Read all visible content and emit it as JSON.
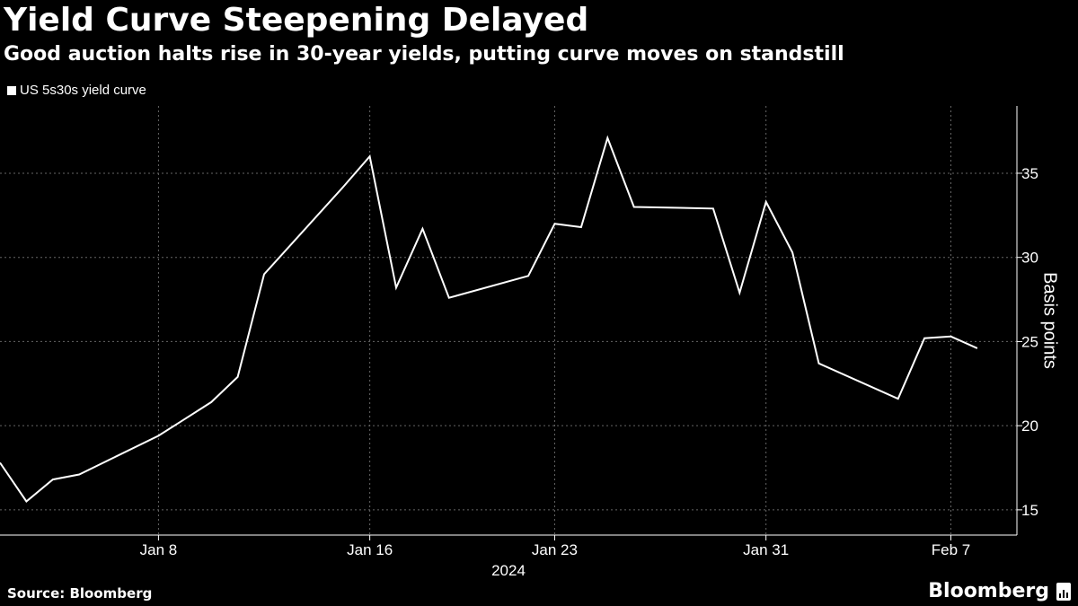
{
  "title": "Yield Curve Steepening Delayed",
  "subtitle": "Good auction halts rise in 30-year yields, putting curve moves on standstill",
  "source": "Source: Bloomberg",
  "brand": "Bloomberg",
  "colors": {
    "background": "#000000",
    "line": "#ffffff",
    "grid": "#666666"
  },
  "chart_data": {
    "type": "line",
    "ylabel": "Basis points",
    "xlabel_year": "2024",
    "ylim": [
      13.5,
      39
    ],
    "yticks": [
      15,
      20,
      25,
      30,
      35
    ],
    "xticks": [
      {
        "day": 8,
        "label": "Jan 8"
      },
      {
        "day": 16,
        "label": "Jan 16"
      },
      {
        "day": 23,
        "label": "Jan 23"
      },
      {
        "day": 31,
        "label": "Jan 31"
      },
      {
        "day": 38,
        "label": "Feb 7"
      }
    ],
    "grid": true,
    "y_axis_position": "right",
    "legend_position": "top-left",
    "series": [
      {
        "name": "US 5s30s yield curve",
        "points": [
          {
            "date": "2024-01-02",
            "day": 2,
            "value": 17.8
          },
          {
            "date": "2024-01-03",
            "day": 3,
            "value": 15.5
          },
          {
            "date": "2024-01-04",
            "day": 4,
            "value": 16.8
          },
          {
            "date": "2024-01-05",
            "day": 5,
            "value": 17.1
          },
          {
            "date": "2024-01-08",
            "day": 8,
            "value": 19.4
          },
          {
            "date": "2024-01-09",
            "day": 9,
            "value": 20.4
          },
          {
            "date": "2024-01-10",
            "day": 10,
            "value": 21.4
          },
          {
            "date": "2024-01-11",
            "day": 11,
            "value": 22.9
          },
          {
            "date": "2024-01-12",
            "day": 12,
            "value": 29.0
          },
          {
            "date": "2024-01-15",
            "day": 15,
            "value": 34.2
          },
          {
            "date": "2024-01-16",
            "day": 16,
            "value": 36.0
          },
          {
            "date": "2024-01-17",
            "day": 17,
            "value": 28.2
          },
          {
            "date": "2024-01-18",
            "day": 18,
            "value": 31.7
          },
          {
            "date": "2024-01-19",
            "day": 19,
            "value": 27.6
          },
          {
            "date": "2024-01-22",
            "day": 22,
            "value": 28.9
          },
          {
            "date": "2024-01-23",
            "day": 23,
            "value": 32.0
          },
          {
            "date": "2024-01-24",
            "day": 24,
            "value": 31.8
          },
          {
            "date": "2024-01-25",
            "day": 25,
            "value": 37.1
          },
          {
            "date": "2024-01-26",
            "day": 26,
            "value": 33.0
          },
          {
            "date": "2024-01-29",
            "day": 29,
            "value": 32.9
          },
          {
            "date": "2024-01-30",
            "day": 30,
            "value": 27.9
          },
          {
            "date": "2024-01-31",
            "day": 31,
            "value": 33.3
          },
          {
            "date": "2024-02-01",
            "day": 32,
            "value": 30.3
          },
          {
            "date": "2024-02-02",
            "day": 33,
            "value": 23.7
          },
          {
            "date": "2024-02-05",
            "day": 36,
            "value": 21.6
          },
          {
            "date": "2024-02-06",
            "day": 37,
            "value": 25.2
          },
          {
            "date": "2024-02-07",
            "day": 38,
            "value": 25.3
          },
          {
            "date": "2024-02-08",
            "day": 39,
            "value": 24.6
          }
        ]
      }
    ]
  }
}
